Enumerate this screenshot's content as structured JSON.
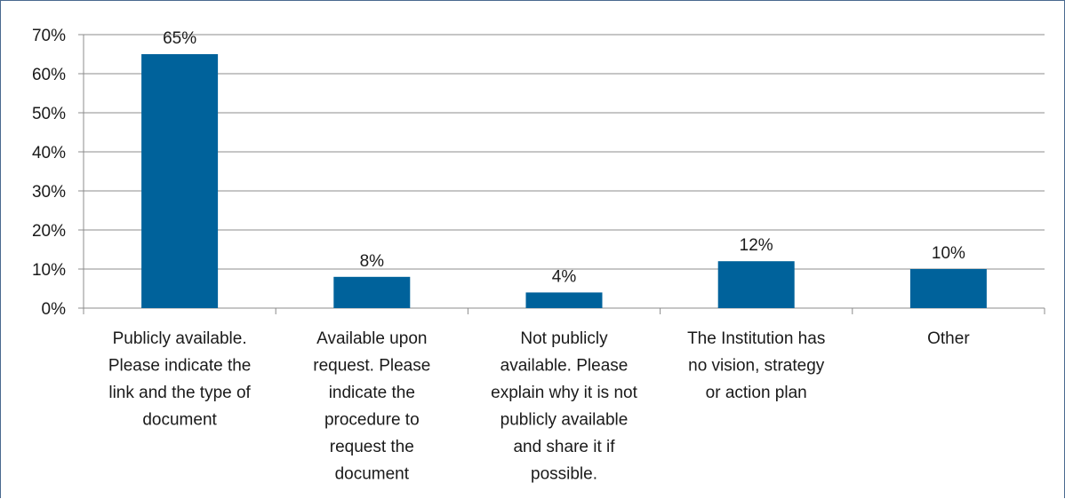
{
  "chart_data": {
    "type": "bar",
    "categories": [
      [
        "Publicly available.",
        "Please indicate the",
        "link and the type of",
        "document"
      ],
      [
        "Available upon",
        "request. Please",
        "indicate the",
        "procedure to",
        "request the",
        "document"
      ],
      [
        "Not publicly",
        "available. Please",
        "explain why it is not",
        "publicly available",
        "and share it if",
        "possible."
      ],
      [
        "The Institution has",
        "no vision, strategy",
        "or action plan"
      ],
      [
        "Other"
      ]
    ],
    "values": [
      65,
      8,
      4,
      12,
      10
    ],
    "data_labels": [
      "65%",
      "8%",
      "4%",
      "12%",
      "10%"
    ],
    "yticks": [
      0,
      10,
      20,
      30,
      40,
      50,
      60,
      70
    ],
    "ytick_labels": [
      "0%",
      "10%",
      "20%",
      "30%",
      "40%",
      "50%",
      "60%",
      "70%"
    ],
    "ylim": [
      0,
      70
    ],
    "grid": true,
    "bar_color": "#00629b",
    "title": "",
    "xlabel": "",
    "ylabel": ""
  }
}
